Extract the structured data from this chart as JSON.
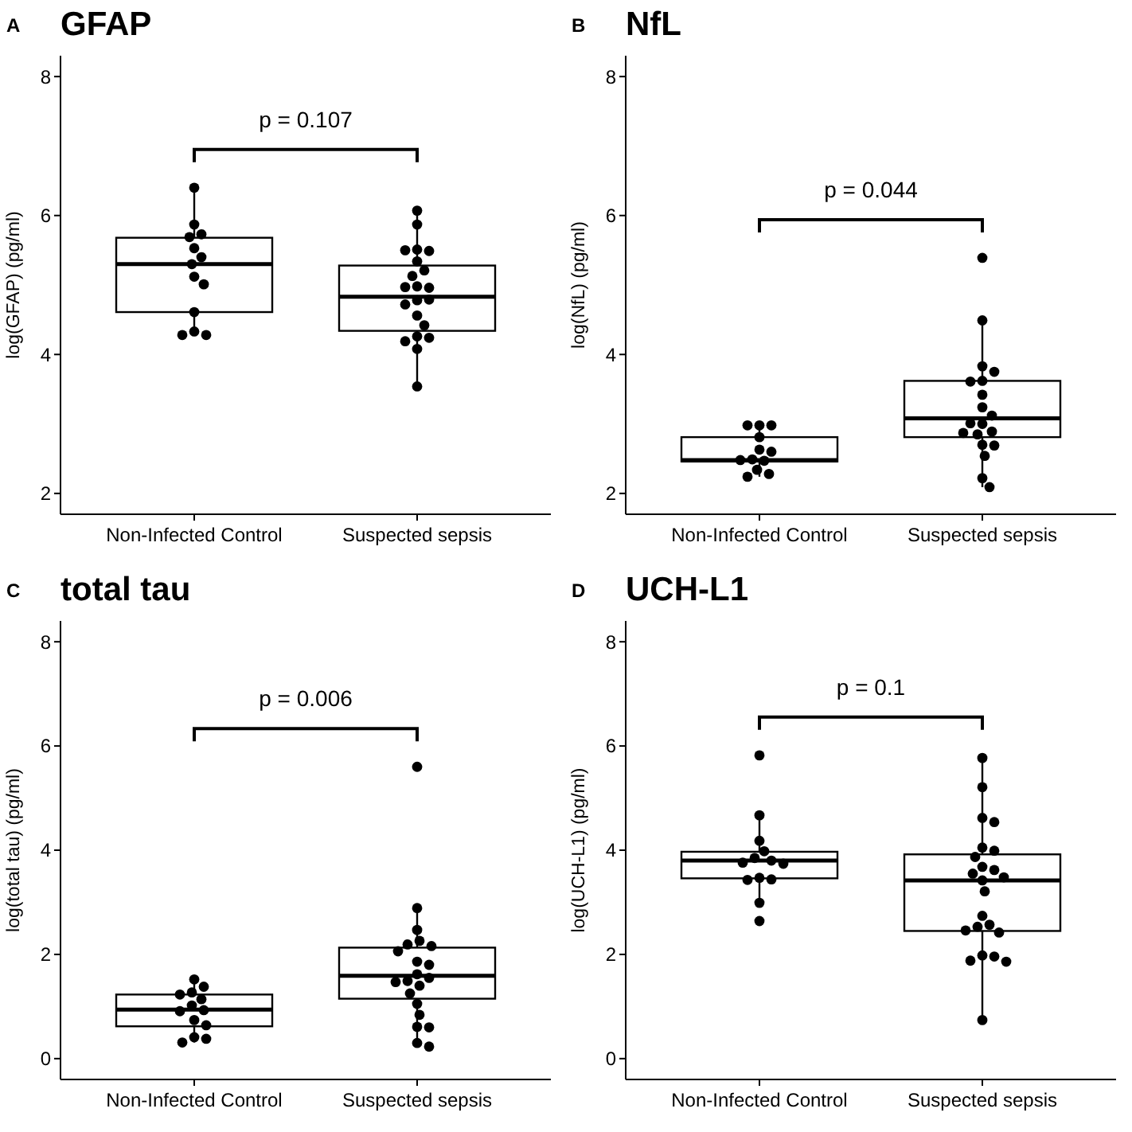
{
  "chart_data": [
    {
      "type": "box",
      "title": "GFAP",
      "ylabel": "log(GFAP) (pg/ml)",
      "annotations": [
        "A",
        "p = 0.107"
      ],
      "categories": [
        "Non-Infected Control",
        "Suspected sepsis"
      ],
      "ylim": [
        1.7,
        8.3
      ],
      "yticks": [
        2,
        4,
        6,
        8
      ],
      "boxes": [
        {
          "low": 4.28,
          "q1": 4.61,
          "median": 5.3,
          "q3": 5.68,
          "high": 6.4
        },
        {
          "low": 3.54,
          "q1": 4.34,
          "median": 4.83,
          "q3": 5.28,
          "high": 6.06
        }
      ],
      "series": [
        {
          "type": "scatter",
          "color": "#000000",
          "x": [
            "Non-Infected Control",
            "Non-Infected Control",
            "Non-Infected Control",
            "Non-Infected Control",
            "Non-Infected Control",
            "Non-Infected Control",
            "Non-Infected Control",
            "Non-Infected Control",
            "Non-Infected Control",
            "Non-Infected Control",
            "Non-Infected Control",
            "Non-Infected Control",
            "Non-Infected Control",
            "Suspected sepsis",
            "Suspected sepsis",
            "Suspected sepsis",
            "Suspected sepsis",
            "Suspected sepsis",
            "Suspected sepsis",
            "Suspected sepsis",
            "Suspected sepsis",
            "Suspected sepsis",
            "Suspected sepsis",
            "Suspected sepsis",
            "Suspected sepsis",
            "Suspected sepsis",
            "Suspected sepsis",
            "Suspected sepsis",
            "Suspected sepsis",
            "Suspected sepsis",
            "Suspected sepsis",
            "Suspected sepsis",
            "Suspected sepsis",
            "Suspected sepsis"
          ],
          "values": [
            6.4,
            5.87,
            5.73,
            5.69,
            5.53,
            5.4,
            5.3,
            5.12,
            5.01,
            4.61,
            4.33,
            4.28,
            4.28,
            6.07,
            5.87,
            5.51,
            5.49,
            5.5,
            5.34,
            5.21,
            5.13,
            4.98,
            4.96,
            4.97,
            4.78,
            4.79,
            4.72,
            4.56,
            4.42,
            4.26,
            4.24,
            4.19,
            4.08,
            3.54
          ]
        }
      ]
    },
    {
      "type": "box",
      "title": "NfL",
      "ylabel": "log(NfL) (pg/ml)",
      "annotations": [
        "B",
        "p = 0.044"
      ],
      "categories": [
        "Non-Infected Control",
        "Suspected sepsis"
      ],
      "ylim": [
        1.7,
        8.3
      ],
      "yticks": [
        2,
        4,
        6,
        8
      ],
      "boxes": [
        {
          "low": 2.24,
          "q1": 2.46,
          "median": 2.48,
          "q3": 2.81,
          "high": 2.98
        },
        {
          "low": 2.09,
          "q1": 2.81,
          "median": 3.08,
          "q3": 3.62,
          "high": 4.49
        }
      ],
      "series": [
        {
          "type": "scatter",
          "color": "#000000",
          "x": [
            "Non-Infected Control",
            "Non-Infected Control",
            "Non-Infected Control",
            "Non-Infected Control",
            "Non-Infected Control",
            "Non-Infected Control",
            "Non-Infected Control",
            "Non-Infected Control",
            "Non-Infected Control",
            "Non-Infected Control",
            "Non-Infected Control",
            "Non-Infected Control",
            "Suspected sepsis",
            "Suspected sepsis",
            "Suspected sepsis",
            "Suspected sepsis",
            "Suspected sepsis",
            "Suspected sepsis",
            "Suspected sepsis",
            "Suspected sepsis",
            "Suspected sepsis",
            "Suspected sepsis",
            "Suspected sepsis",
            "Suspected sepsis",
            "Suspected sepsis",
            "Suspected sepsis",
            "Suspected sepsis",
            "Suspected sepsis",
            "Suspected sepsis",
            "Suspected sepsis",
            "Suspected sepsis"
          ],
          "values": [
            2.98,
            2.98,
            2.98,
            2.81,
            2.63,
            2.6,
            2.49,
            2.48,
            2.47,
            2.34,
            2.28,
            2.24,
            5.39,
            4.49,
            3.83,
            3.75,
            3.62,
            3.61,
            3.42,
            3.24,
            3.12,
            3.0,
            3.01,
            2.89,
            2.87,
            2.85,
            2.7,
            2.69,
            2.54,
            2.22,
            2.09
          ]
        }
      ]
    },
    {
      "type": "box",
      "title": "total tau",
      "ylabel": "log(total tau) (pg/ml)",
      "annotations": [
        "C",
        "p = 0.006"
      ],
      "categories": [
        "Non-Infected Control",
        "Suspected sepsis"
      ],
      "ylim": [
        -0.4,
        8.4
      ],
      "yticks": [
        0,
        2,
        4,
        6,
        8
      ],
      "boxes": [
        {
          "low": 0.31,
          "q1": 0.62,
          "median": 0.94,
          "q3": 1.23,
          "high": 1.52
        },
        {
          "low": 0.23,
          "q1": 1.15,
          "median": 1.59,
          "q3": 2.13,
          "high": 2.89
        }
      ],
      "series": [
        {
          "type": "scatter",
          "color": "#000000",
          "x": [
            "Non-Infected Control",
            "Non-Infected Control",
            "Non-Infected Control",
            "Non-Infected Control",
            "Non-Infected Control",
            "Non-Infected Control",
            "Non-Infected Control",
            "Non-Infected Control",
            "Non-Infected Control",
            "Non-Infected Control",
            "Non-Infected Control",
            "Non-Infected Control",
            "Non-Infected Control",
            "Suspected sepsis",
            "Suspected sepsis",
            "Suspected sepsis",
            "Suspected sepsis",
            "Suspected sepsis",
            "Suspected sepsis",
            "Suspected sepsis",
            "Suspected sepsis",
            "Suspected sepsis",
            "Suspected sepsis",
            "Suspected sepsis",
            "Suspected sepsis",
            "Suspected sepsis",
            "Suspected sepsis",
            "Suspected sepsis",
            "Suspected sepsis",
            "Suspected sepsis",
            "Suspected sepsis",
            "Suspected sepsis",
            "Suspected sepsis",
            "Suspected sepsis"
          ],
          "values": [
            1.52,
            1.38,
            1.27,
            1.23,
            1.14,
            1.02,
            0.93,
            0.91,
            0.74,
            0.64,
            0.41,
            0.38,
            0.31,
            5.6,
            2.89,
            2.47,
            2.26,
            2.19,
            2.16,
            2.06,
            1.86,
            1.8,
            1.62,
            1.55,
            1.49,
            1.47,
            1.4,
            1.25,
            1.05,
            0.84,
            0.61,
            0.6,
            0.3,
            0.23
          ]
        }
      ]
    },
    {
      "type": "box",
      "title": "UCH-L1",
      "ylabel": "log(UCH-L1) (pg/ml)",
      "annotations": [
        "D",
        "p = 0.1"
      ],
      "categories": [
        "Non-Infected Control",
        "Suspected sepsis"
      ],
      "ylim": [
        -0.4,
        8.4
      ],
      "yticks": [
        0,
        2,
        4,
        6,
        8
      ],
      "boxes": [
        {
          "low": 2.99,
          "q1": 3.46,
          "median": 3.8,
          "q3": 3.97,
          "high": 4.67
        },
        {
          "low": 0.74,
          "q1": 2.45,
          "median": 3.42,
          "q3": 3.92,
          "high": 5.77
        }
      ],
      "series": [
        {
          "type": "scatter",
          "color": "#000000",
          "x": [
            "Non-Infected Control",
            "Non-Infected Control",
            "Non-Infected Control",
            "Non-Infected Control",
            "Non-Infected Control",
            "Non-Infected Control",
            "Non-Infected Control",
            "Non-Infected Control",
            "Non-Infected Control",
            "Non-Infected Control",
            "Non-Infected Control",
            "Non-Infected Control",
            "Non-Infected Control",
            "Suspected sepsis",
            "Suspected sepsis",
            "Suspected sepsis",
            "Suspected sepsis",
            "Suspected sepsis",
            "Suspected sepsis",
            "Suspected sepsis",
            "Suspected sepsis",
            "Suspected sepsis",
            "Suspected sepsis",
            "Suspected sepsis",
            "Suspected sepsis",
            "Suspected sepsis",
            "Suspected sepsis",
            "Suspected sepsis",
            "Suspected sepsis",
            "Suspected sepsis",
            "Suspected sepsis",
            "Suspected sepsis",
            "Suspected sepsis",
            "Suspected sepsis",
            "Suspected sepsis",
            "Suspected sepsis"
          ],
          "values": [
            5.82,
            4.67,
            4.18,
            3.98,
            3.85,
            3.8,
            3.76,
            3.74,
            3.47,
            3.44,
            3.43,
            2.99,
            2.64,
            5.77,
            5.21,
            4.62,
            4.54,
            4.05,
            3.99,
            3.87,
            3.68,
            3.62,
            3.55,
            3.48,
            3.42,
            3.21,
            2.74,
            2.57,
            2.53,
            2.46,
            2.42,
            1.98,
            1.96,
            1.88,
            1.86,
            0.74
          ]
        }
      ]
    }
  ]
}
